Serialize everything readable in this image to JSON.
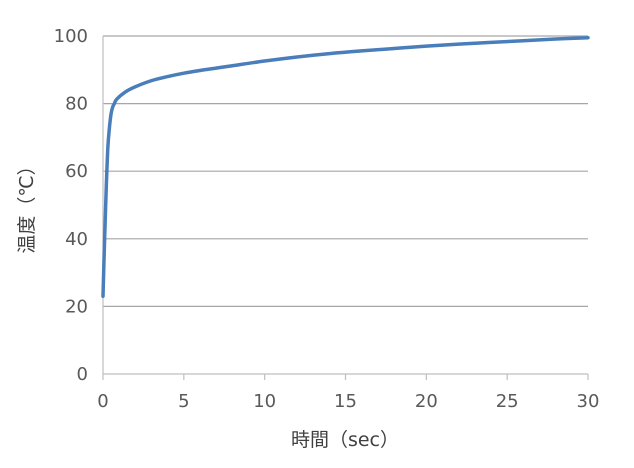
{
  "chart_data": {
    "type": "line",
    "title": "",
    "xlabel": "時間（sec）",
    "ylabel": "温度（℃）",
    "xlim": [
      0,
      30
    ],
    "ylim": [
      0,
      100
    ],
    "xticks": [
      0,
      5,
      10,
      15,
      20,
      25,
      30
    ],
    "yticks": [
      0,
      20,
      40,
      60,
      80,
      100
    ],
    "x_tick_labels": [
      "0",
      "5",
      "10",
      "15",
      "20",
      "25",
      "30"
    ],
    "y_tick_labels": [
      "0",
      "20",
      "40",
      "60",
      "80",
      "100"
    ],
    "grid": "horizontal",
    "legend": "none",
    "series": [
      {
        "color": "#4a7ebb",
        "x": [
          0,
          0.1,
          0.2,
          0.3,
          0.4,
          0.5,
          0.6,
          0.7,
          0.8,
          1.0,
          1.2,
          1.5,
          2,
          3,
          4,
          5,
          6,
          7,
          8,
          10,
          12,
          14,
          16,
          18,
          20,
          22,
          24,
          26,
          28,
          30
        ],
        "y": [
          23,
          40,
          55,
          67,
          73,
          77,
          79,
          80,
          81,
          82,
          82.8,
          83.8,
          85,
          86.8,
          88,
          89,
          89.8,
          90.5,
          91.2,
          92.6,
          93.8,
          94.8,
          95.6,
          96.3,
          97,
          97.6,
          98.1,
          98.6,
          99.1,
          99.5
        ]
      }
    ],
    "colors": {
      "axis": "#bfbfbf",
      "grid": "#a6a6a6",
      "series": "#4a7ebb"
    }
  }
}
